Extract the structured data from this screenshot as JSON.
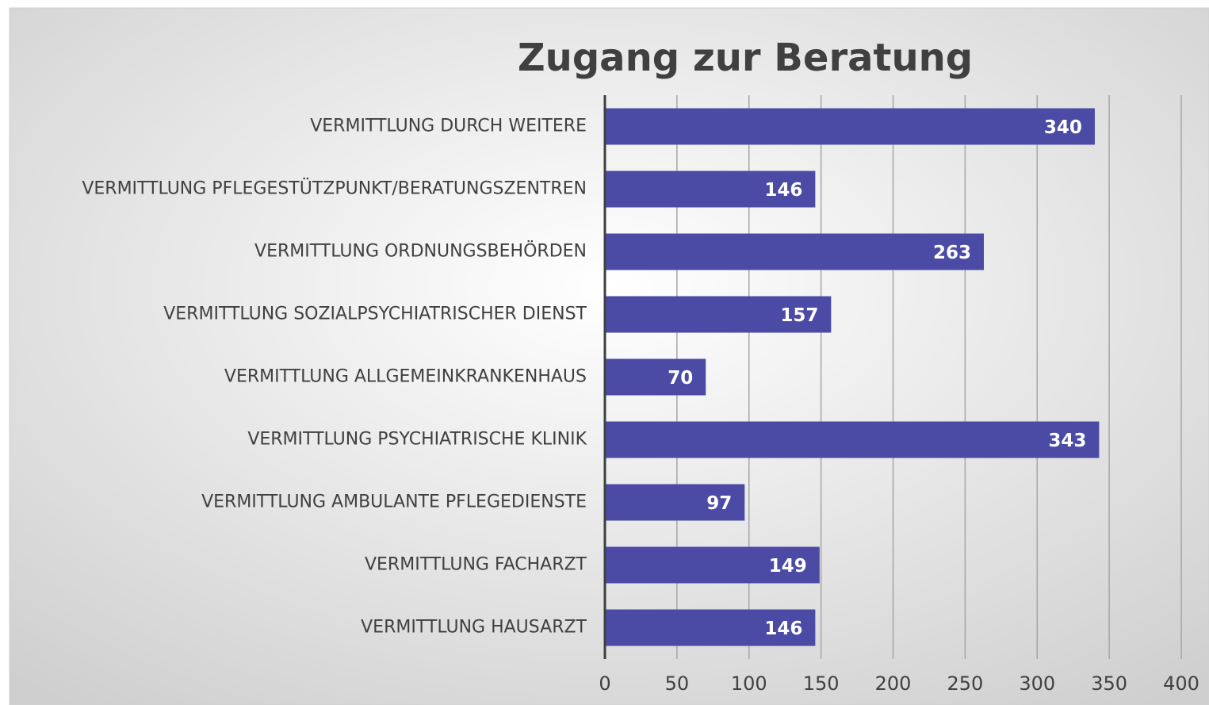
{
  "chart_data": {
    "type": "hbar",
    "title": "Zugang zur Beratung",
    "categories": [
      "VERMITTLUNG DURCH WEITERE",
      "VERMITTLUNG PFLEGESTÜTZPUNKT/BERATUNGSZENTREN",
      "VERMITTLUNG ORDNUNGSBEHÖRDEN",
      "VERMITTLUNG SOZIALPSYCHIATRISCHER DIENST",
      "VERMITTLUNG ALLGEMEINKRANKENHAUS",
      "VERMITTLUNG PSYCHIATRISCHE KLINIK",
      "VERMITTLUNG AMBULANTE PFLEGEDIENSTE",
      "VERMITTLUNG FACHARZT",
      "VERMITTLUNG HAUSARZT"
    ],
    "values": [
      340,
      146,
      263,
      157,
      70,
      343,
      97,
      149,
      146
    ],
    "color": "#4b4ba6",
    "xlim": [
      0,
      400
    ],
    "xticks": [
      0,
      50,
      100,
      150,
      200,
      250,
      300,
      350,
      400
    ],
    "grid": true
  }
}
